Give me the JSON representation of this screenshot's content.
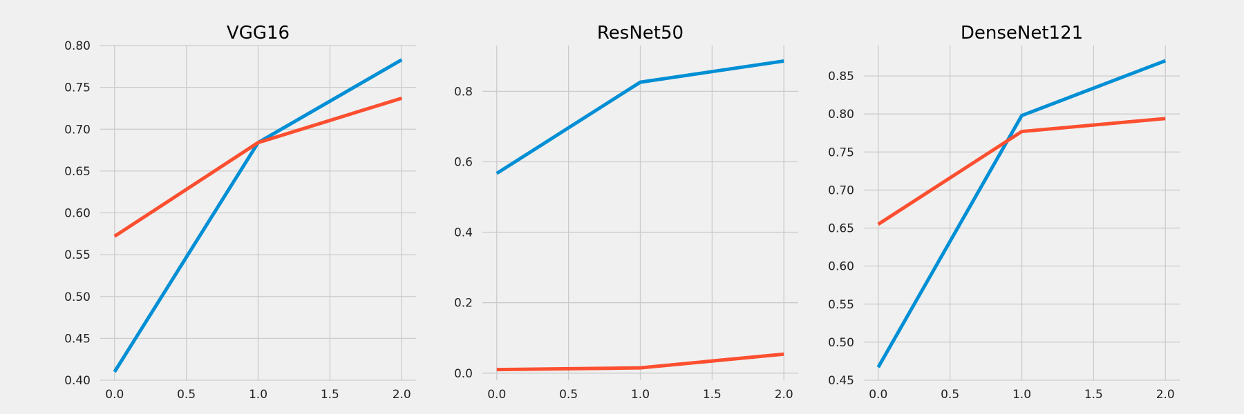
{
  "chart_data": [
    {
      "type": "line",
      "title": "VGG16",
      "x": [
        0,
        1,
        2
      ],
      "xlim": [
        -0.1,
        2.1
      ],
      "ylim": [
        0.4,
        0.8
      ],
      "xticks": [
        "0.0",
        "0.5",
        "1.0",
        "1.5",
        "2.0"
      ],
      "yticks": [
        "0.40",
        "0.45",
        "0.50",
        "0.55",
        "0.60",
        "0.65",
        "0.70",
        "0.75",
        "0.80"
      ],
      "grid": true,
      "series": [
        {
          "color": "#008fd5",
          "values": [
            0.41,
            0.684,
            0.783
          ]
        },
        {
          "color": "#fc4f30",
          "values": [
            0.572,
            0.684,
            0.737
          ]
        }
      ]
    },
    {
      "type": "line",
      "title": "ResNet50",
      "x": [
        0,
        1,
        2
      ],
      "xlim": [
        -0.1,
        2.1
      ],
      "ylim": [
        -0.02,
        0.93
      ],
      "xticks": [
        "0.0",
        "0.5",
        "1.0",
        "1.5",
        "2.0"
      ],
      "yticks": [
        "0.0",
        "0.2",
        "0.4",
        "0.6",
        "0.8"
      ],
      "grid": true,
      "series": [
        {
          "color": "#008fd5",
          "values": [
            0.567,
            0.826,
            0.886
          ]
        },
        {
          "color": "#fc4f30",
          "values": [
            0.01,
            0.015,
            0.054
          ]
        }
      ]
    },
    {
      "type": "line",
      "title": "DenseNet121",
      "x": [
        0,
        1,
        2
      ],
      "xlim": [
        -0.1,
        2.1
      ],
      "ylim": [
        0.45,
        0.89
      ],
      "xticks": [
        "0.0",
        "0.5",
        "1.0",
        "1.5",
        "2.0"
      ],
      "yticks": [
        "0.45",
        "0.50",
        "0.55",
        "0.60",
        "0.65",
        "0.70",
        "0.75",
        "0.80",
        "0.85"
      ],
      "grid": true,
      "series": [
        {
          "color": "#008fd5",
          "values": [
            0.467,
            0.798,
            0.87
          ]
        },
        {
          "color": "#fc4f30",
          "values": [
            0.655,
            0.777,
            0.794
          ]
        }
      ]
    }
  ]
}
